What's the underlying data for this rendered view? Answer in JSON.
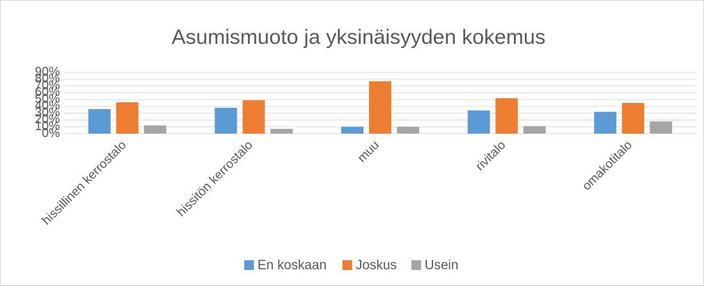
{
  "chart_data": {
    "type": "bar",
    "title": "Asumismuoto ja yksinäisyyden kokemus",
    "categories": [
      "hissillinen kerrostalo",
      "hissitön kerrostalo",
      "muu",
      "rivitalo",
      "omakotitalo"
    ],
    "series": [
      {
        "name": "En koskaan",
        "color": "#5b9bd5",
        "values": [
          36,
          38,
          10,
          34,
          32
        ]
      },
      {
        "name": "Joskus",
        "color": "#ed7d31",
        "values": [
          46,
          49,
          77,
          52,
          45
        ]
      },
      {
        "name": "Usein",
        "color": "#a5a5a5",
        "values": [
          12,
          7,
          10,
          11,
          18
        ]
      }
    ],
    "ylim": [
      0,
      90
    ],
    "yticks": [
      {
        "value": 0,
        "label": "0%"
      },
      {
        "value": 10,
        "label": "10%"
      },
      {
        "value": 20,
        "label": "20%"
      },
      {
        "value": 30,
        "label": "30%"
      },
      {
        "value": 40,
        "label": "40%"
      },
      {
        "value": 50,
        "label": "50%"
      },
      {
        "value": 60,
        "label": "60%"
      },
      {
        "value": 70,
        "label": "70%"
      },
      {
        "value": 80,
        "label": "80%"
      },
      {
        "value": 90,
        "label": "90%"
      }
    ],
    "grid": true,
    "legend": "bottom"
  }
}
